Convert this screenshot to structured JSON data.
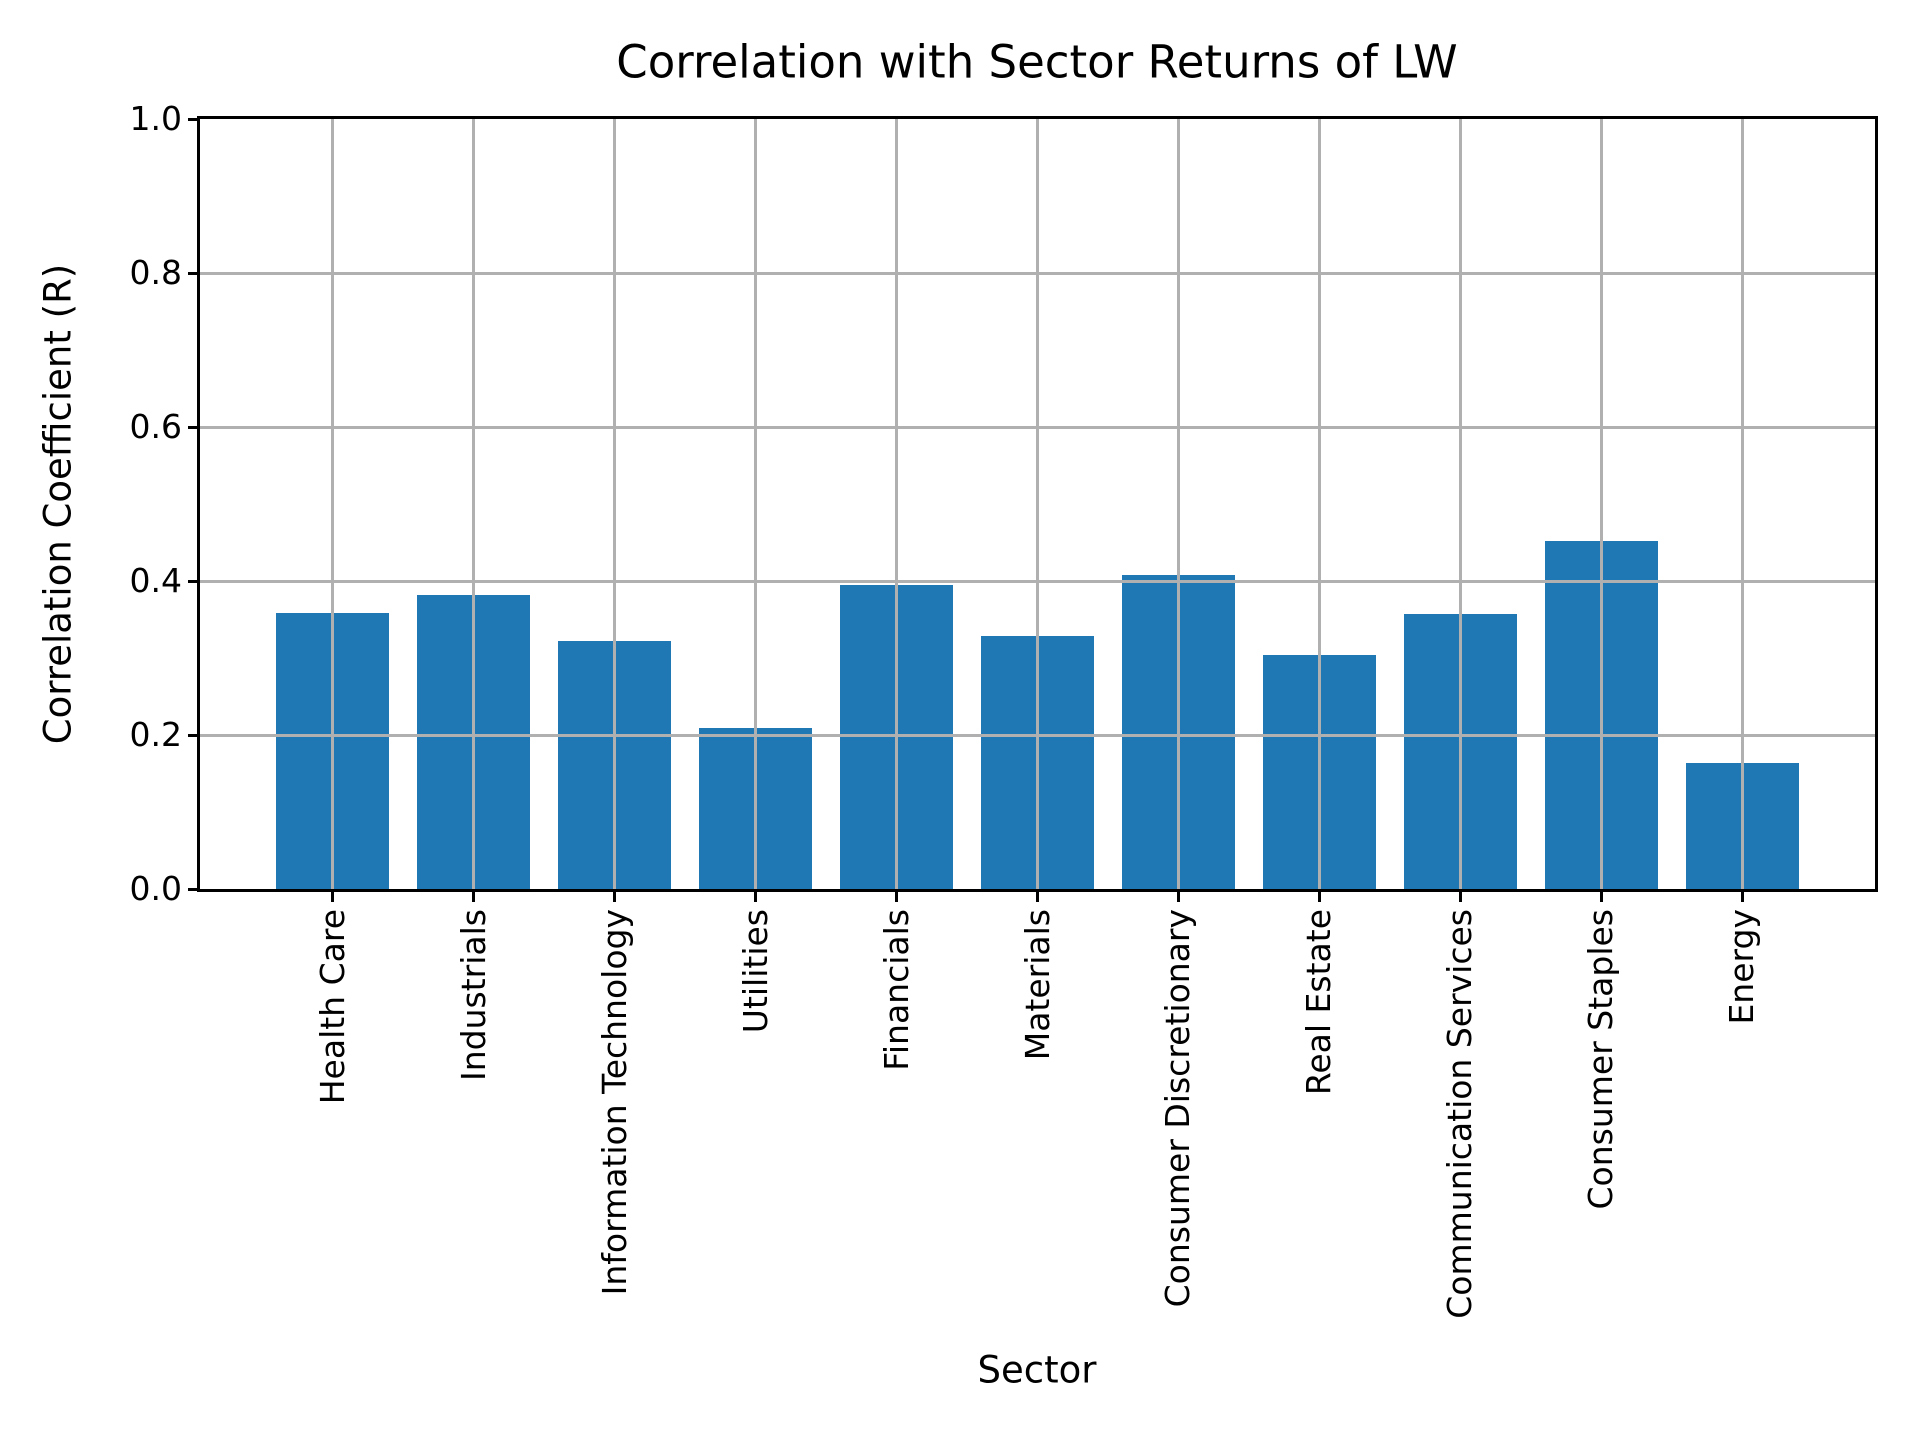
{
  "figure": {
    "background": "#ffffff",
    "text_color": "#000000"
  },
  "chart_data": {
    "type": "bar",
    "title": "Correlation with Sector Returns of LW",
    "xlabel": "Sector",
    "ylabel": "Correlation Coefficient (R)",
    "categories": [
      "Health Care",
      "Industrials",
      "Information Technology",
      "Utilities",
      "Financials",
      "Materials",
      "Consumer Discretionary",
      "Real Estate",
      "Communication Services",
      "Consumer Staples",
      "Energy"
    ],
    "values": [
      0.358,
      0.382,
      0.322,
      0.209,
      0.395,
      0.329,
      0.408,
      0.304,
      0.357,
      0.452,
      0.164
    ],
    "ylim": [
      0.0,
      1.0
    ],
    "yticks": [
      0.0,
      0.2,
      0.4,
      0.6,
      0.8,
      1.0
    ],
    "ytick_labels": [
      "0.0",
      "0.2",
      "0.4",
      "0.6",
      "0.8",
      "1.0"
    ],
    "xtick_rotation_deg": 90,
    "bar_width_units": 0.8,
    "xlim": [
      -0.94,
      10.94
    ],
    "grid": true,
    "grid_color": "#b0b0b0",
    "grid_above_bars": true,
    "legend": false,
    "bar_color": "#1f77b4",
    "spine_color": "#000000"
  }
}
